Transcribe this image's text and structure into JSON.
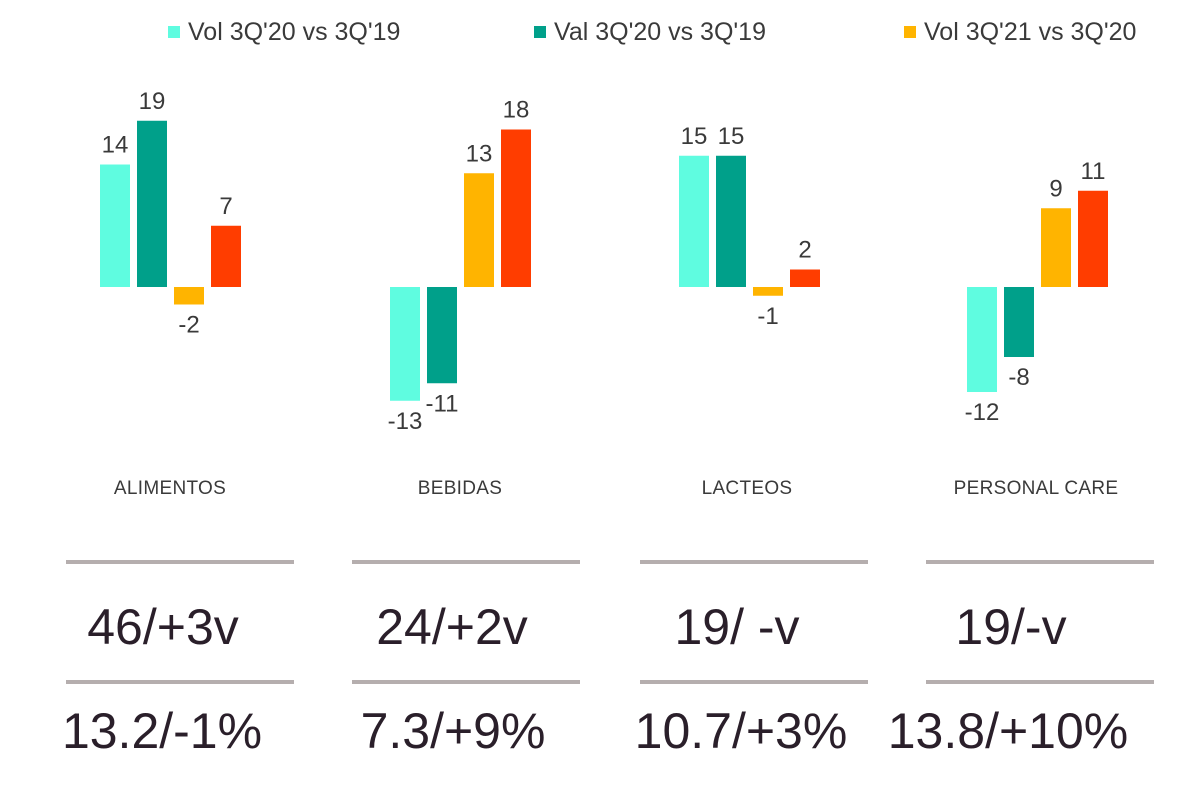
{
  "legend": [
    {
      "label": "Vol 3Q'20 vs 3Q'19",
      "color": "#5ffce0"
    },
    {
      "label": "Val 3Q'20 vs 3Q'19",
      "color": "#00a08a"
    },
    {
      "label": "Vol 3Q'21 vs 3Q'20",
      "color": "#ffb400"
    }
  ],
  "chart_data": {
    "type": "bar",
    "categories": [
      "ALIMENTOS",
      "BEBIDAS",
      "LACTEOS",
      "PERSONAL CARE"
    ],
    "series": [
      {
        "name": "Vol 3Q'20 vs 3Q'19",
        "color": "#5ffce0",
        "values": [
          14,
          -13,
          15,
          -12
        ]
      },
      {
        "name": "Val 3Q'20 vs 3Q'19",
        "color": "#00a08a",
        "values": [
          19,
          -11,
          15,
          -8
        ]
      },
      {
        "name": "Vol 3Q'21 vs 3Q'20",
        "color": "#ffb400",
        "values": [
          -2,
          13,
          -1,
          9
        ]
      },
      {
        "color": "#ff3d00",
        "values": [
          7,
          18,
          2,
          11
        ]
      }
    ],
    "data_labels": [
      [
        "14",
        "19",
        "-2",
        "7"
      ],
      [
        "-13",
        "-11",
        "13",
        "18"
      ],
      [
        "15",
        "15",
        "-1",
        "2"
      ],
      [
        "-12",
        "-8",
        "9",
        "11"
      ]
    ]
  },
  "stats": [
    {
      "line1": "46/+3v",
      "line2": "13.2/-1%"
    },
    {
      "line1": "24/+2v",
      "line2": "7.3/+9%"
    },
    {
      "line1": "19/ -v",
      "line2": "10.7/+3%"
    },
    {
      "line1": "19/-v",
      "line2": "13.8/+10%"
    }
  ]
}
